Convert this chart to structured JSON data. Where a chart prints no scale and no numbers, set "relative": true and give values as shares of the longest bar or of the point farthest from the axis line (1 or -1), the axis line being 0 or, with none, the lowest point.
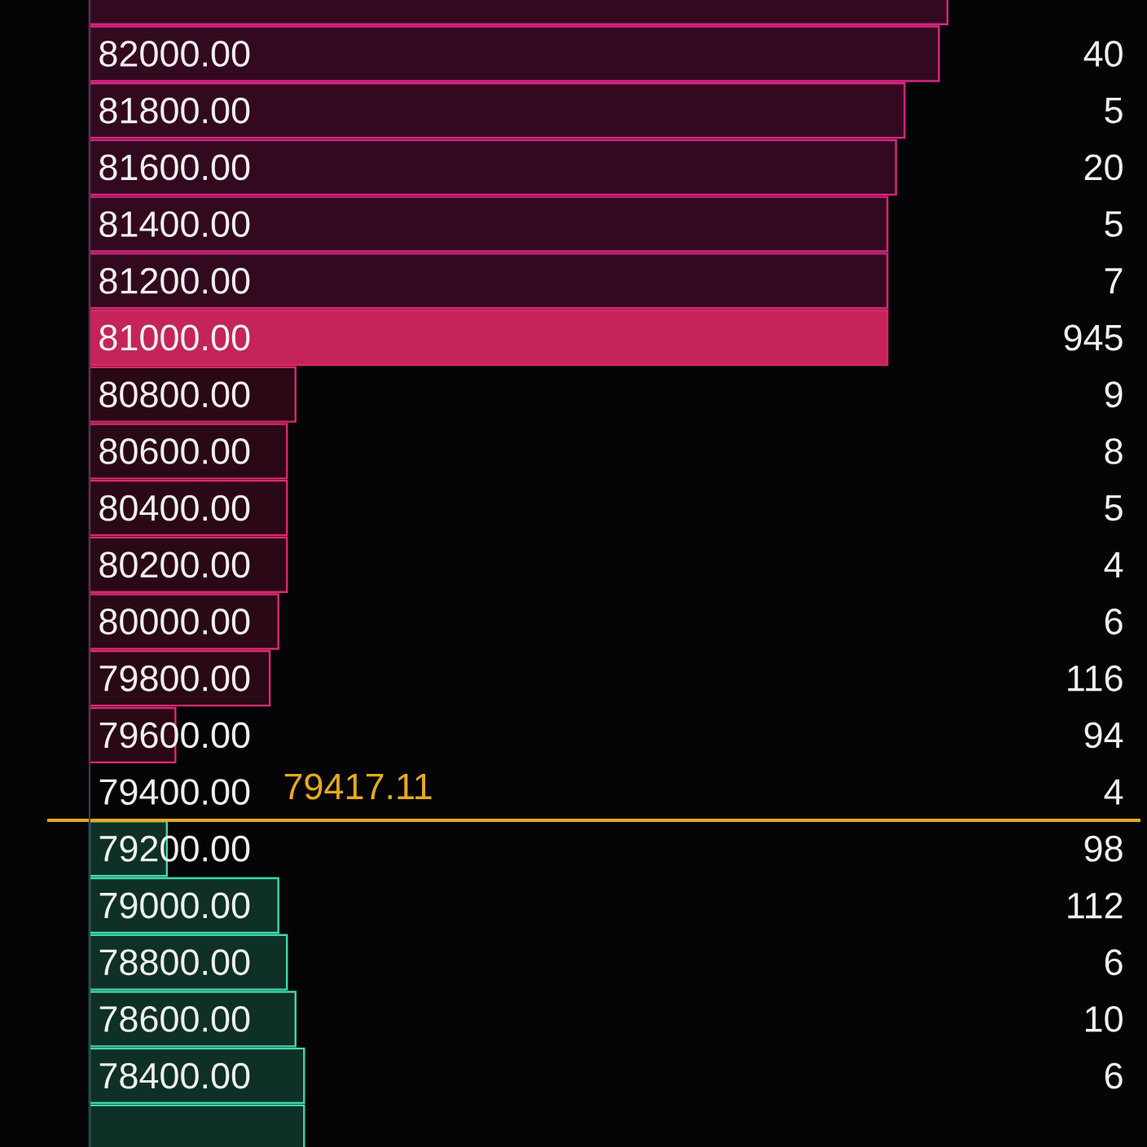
{
  "chart_data": {
    "type": "bar",
    "orientation": "horizontal",
    "relative": true,
    "categories": [
      null,
      "82000.00",
      "81800.00",
      "81600.00",
      "81400.00",
      "81200.00",
      "81000.00",
      "80800.00",
      "80600.00",
      "80400.00",
      "80200.00",
      "80000.00",
      "79800.00",
      "79600.00",
      "79400.00",
      "79200.00",
      "79000.00",
      "78800.00",
      "78600.00",
      "78400.00",
      null
    ],
    "values": [
      1.0,
      0.99,
      0.95,
      0.94,
      0.93,
      0.93,
      0.93,
      0.24,
      0.23,
      0.23,
      0.23,
      0.22,
      0.21,
      0.1,
      null,
      0.09,
      0.22,
      0.23,
      0.24,
      0.25,
      0.25
    ],
    "colors": [
      "#33091f",
      "#33091f",
      "#33091f",
      "#33091f",
      "#33091f",
      "#33091f",
      "#c4245a",
      "#2a0816",
      "#2a0816",
      "#2a0816",
      "#2a0816",
      "#2a0816",
      "#2a0816",
      "#2a0816",
      "#0e3026",
      "#0e3026",
      "#0e3026",
      "#0e3026",
      "#0e3026",
      "#0e3026",
      "#0e3026"
    ],
    "annotations": [
      "40",
      "5",
      "20",
      "5",
      "7",
      "945",
      "9",
      "8",
      "5",
      "4",
      "6",
      "116",
      "94",
      "4",
      "98",
      "112",
      "6",
      "10",
      "6"
    ],
    "ref_lines": [
      {
        "axis": "y",
        "value": "79400.00",
        "label": "79417.11",
        "color": "#e6aa1e"
      }
    ]
  }
}
